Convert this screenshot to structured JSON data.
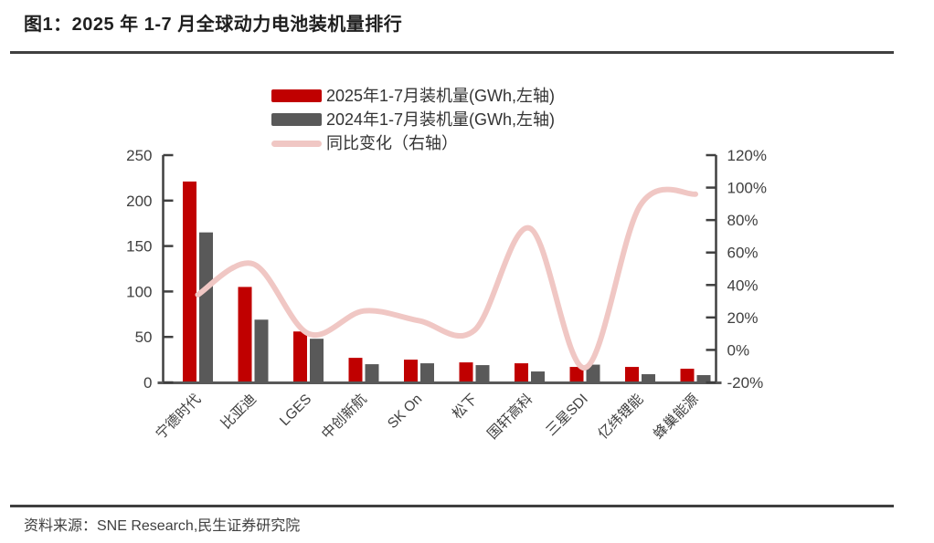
{
  "title": "图1：2025 年 1-7 月全球动力电池装机量排行",
  "source": "资料来源：SNE Research,民生证券研究院",
  "colors": {
    "bar_2025": "#C00000",
    "bar_2024": "#595959",
    "growth_line": "#F0C7C4",
    "axis_line": "#404040",
    "baseline": "#595959",
    "tick_label": "#404040",
    "category_label": "#404040"
  },
  "legend": {
    "items": [
      {
        "label": "2025年1-7月装机量(GWh,左轴)",
        "type": "bar",
        "color": "#C00000"
      },
      {
        "label": "2024年1-7月装机量(GWh,左轴)",
        "type": "bar",
        "color": "#595959"
      },
      {
        "label": "同比变化（右轴）",
        "type": "line",
        "color": "#F0C7C4"
      }
    ]
  },
  "chart_data": {
    "type": "bar",
    "subtype": "grouped-bars-with-line",
    "categories": [
      "宁德时代",
      "比亚迪",
      "LGES",
      "中创新航",
      "SK On",
      "松下",
      "国轩高科",
      "三星SDI",
      "亿纬锂能",
      "蜂巢能源"
    ],
    "series": [
      {
        "name": "2025年1-7月装机量(GWh,左轴)",
        "type": "bar",
        "axis": "left",
        "color": "#C00000",
        "values": [
          221,
          105,
          56,
          27,
          25,
          22,
          21,
          17,
          17,
          15
        ]
      },
      {
        "name": "2024年1-7月装机量(GWh,左轴)",
        "type": "bar",
        "axis": "left",
        "color": "#595959",
        "values": [
          165,
          69,
          48,
          20,
          21,
          19,
          12,
          19.5,
          9,
          8
        ]
      },
      {
        "name": "同比变化（右轴）",
        "type": "line",
        "axis": "right",
        "color": "#F0C7C4",
        "smooth": true,
        "values": [
          34,
          53,
          10,
          24,
          18,
          12,
          75,
          -11,
          89,
          96
        ],
        "unit": "%"
      }
    ],
    "left_axis": {
      "min": 0,
      "max": 250,
      "step": 50,
      "ticks": [
        "0",
        "50",
        "100",
        "150",
        "200",
        "250"
      ]
    },
    "right_axis": {
      "min": -20,
      "max": 120,
      "step": 20,
      "ticks": [
        "-20%",
        "0%",
        "20%",
        "40%",
        "60%",
        "80%",
        "100%",
        "120%"
      ]
    },
    "grid": false,
    "legend_position": "top-center"
  }
}
